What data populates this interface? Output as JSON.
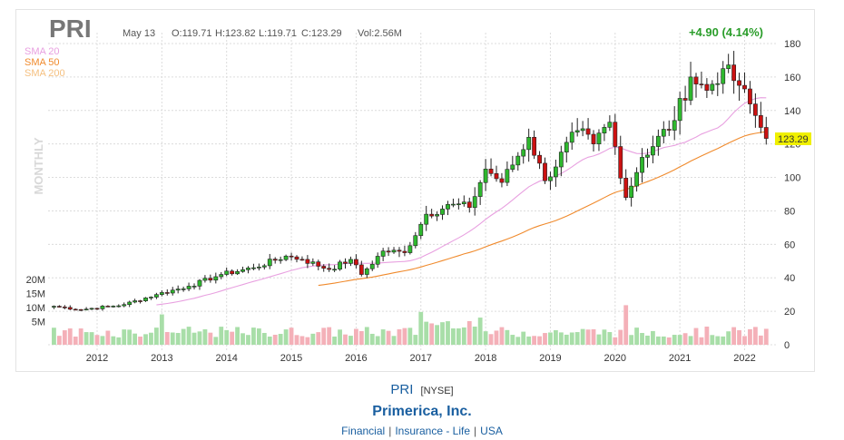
{
  "ticker": "PRI",
  "header": {
    "date": "May 13",
    "open": "O:119.71",
    "high": "H:123.82",
    "low": "L:119.71",
    "close": "C:123.29",
    "volume": "Vol:2.56M",
    "change": "+4.90 (4.14%)"
  },
  "legend": [
    {
      "label": "SMA 20",
      "color": "#e8a0e0"
    },
    {
      "label": "SMA 50",
      "color": "#f08a2c"
    },
    {
      "label": "SMA 200",
      "color": "#f5c080"
    }
  ],
  "timeframe_label": "MONTHLY",
  "last_price_label": "123.29",
  "colors": {
    "up": "#2eb82e",
    "down": "#cc1111",
    "vol_up": "#a8dea8",
    "vol_down": "#f4b0b8",
    "sma20": "#e8a0e0",
    "sma50": "#f08a2c",
    "price_tag": "#f0f000"
  },
  "chart_data": {
    "type": "candlestick",
    "timeframe": "monthly",
    "y_ticks": [
      "0",
      "20",
      "40",
      "60",
      "80",
      "100",
      "120",
      "140",
      "160",
      "180"
    ],
    "ylim": [
      0,
      180
    ],
    "volume_ticks": [
      "5M",
      "10M",
      "15M",
      "20M"
    ],
    "x_ticks": [
      "2012",
      "2013",
      "2014",
      "2015",
      "2016",
      "2017",
      "2018",
      "2019",
      "2020",
      "2021",
      "2022"
    ],
    "anchors": [
      {
        "date": "2011-05",
        "close": 23
      },
      {
        "date": "2011-10",
        "close": 21
      },
      {
        "date": "2012-06",
        "close": 24
      },
      {
        "date": "2012-12",
        "close": 30
      },
      {
        "date": "2013-06",
        "close": 35
      },
      {
        "date": "2013-12",
        "close": 42
      },
      {
        "date": "2014-06",
        "close": 46
      },
      {
        "date": "2014-12",
        "close": 53
      },
      {
        "date": "2015-03",
        "close": 51
      },
      {
        "date": "2015-08",
        "close": 45
      },
      {
        "date": "2015-12",
        "close": 51
      },
      {
        "date": "2016-02",
        "close": 42
      },
      {
        "date": "2016-06",
        "close": 56
      },
      {
        "date": "2016-10",
        "close": 55
      },
      {
        "date": "2017-02",
        "close": 78
      },
      {
        "date": "2017-07",
        "close": 84
      },
      {
        "date": "2017-10",
        "close": 82
      },
      {
        "date": "2018-01",
        "close": 105
      },
      {
        "date": "2018-04",
        "close": 97
      },
      {
        "date": "2018-09",
        "close": 124
      },
      {
        "date": "2018-12",
        "close": 98
      },
      {
        "date": "2019-06",
        "close": 128
      },
      {
        "date": "2019-09",
        "close": 120
      },
      {
        "date": "2019-12",
        "close": 133
      },
      {
        "date": "2020-03",
        "close": 88
      },
      {
        "date": "2020-06",
        "close": 112
      },
      {
        "date": "2020-12",
        "close": 134
      },
      {
        "date": "2021-03",
        "close": 160
      },
      {
        "date": "2021-06",
        "close": 152
      },
      {
        "date": "2021-09",
        "close": 165
      },
      {
        "date": "2021-12",
        "close": 155
      },
      {
        "date": "2022-03",
        "close": 137
      },
      {
        "date": "2022-05",
        "close": 123.29
      }
    ],
    "last_bar": {
      "date": "2022-05-13",
      "open": 119.71,
      "high": 123.82,
      "low": 119.71,
      "close": 123.29,
      "volume_millions": 2.56
    }
  },
  "footer": {
    "ticker": "PRI",
    "exchange": "[NYSE]",
    "company": "Primerica, Inc.",
    "sector": "Financial",
    "industry": "Insurance - Life",
    "country": "USA"
  }
}
